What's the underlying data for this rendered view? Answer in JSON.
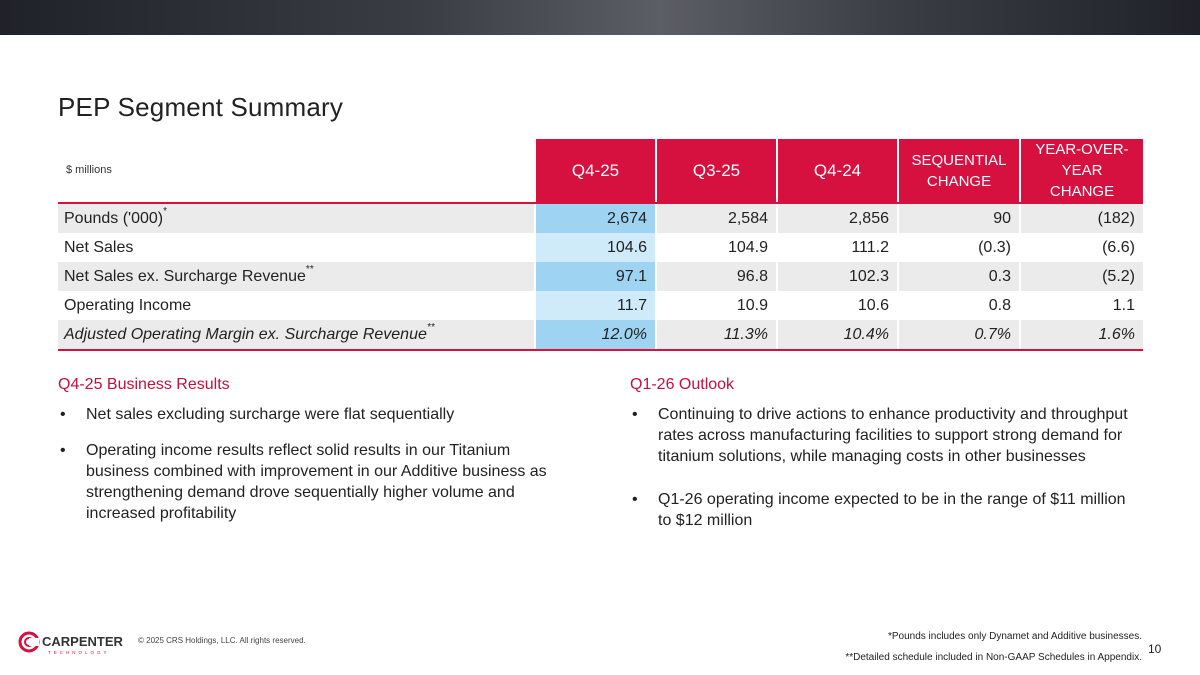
{
  "slide": {
    "title": "PEP Segment Summary",
    "page_number": "10",
    "copyright": "© 2025 CRS Holdings, LLC. All rights reserved.",
    "logo_text": "CARPENTER",
    "logo_subtext": "TECHNOLOGY"
  },
  "table": {
    "units": "$ millions",
    "headers": [
      "Q4-25",
      "Q3-25",
      "Q4-24",
      "SEQUENTIAL CHANGE",
      "YEAR-OVER-YEAR CHANGE"
    ],
    "rows": [
      {
        "label": "Pounds ('000)",
        "mark": "*",
        "values": [
          "2,674",
          "2,584",
          "2,856",
          "90",
          "(182)"
        ]
      },
      {
        "label": "Net Sales",
        "mark": "",
        "values": [
          "104.6",
          "104.9",
          "111.2",
          "(0.3)",
          "(6.6)"
        ]
      },
      {
        "label": "Net Sales ex. Surcharge Revenue",
        "mark": "**",
        "values": [
          "97.1",
          "96.8",
          "102.3",
          "0.3",
          "(5.2)"
        ]
      },
      {
        "label": "Operating Income",
        "mark": "",
        "values": [
          "11.7",
          "10.9",
          "10.6",
          "0.8",
          "1.1"
        ]
      },
      {
        "label": "Adjusted Operating Margin ex. Surcharge Revenue",
        "mark": "**",
        "values": [
          "12.0%",
          "11.3%",
          "10.4%",
          "0.7%",
          "1.6%"
        ]
      }
    ]
  },
  "business_results": {
    "heading": "Q4-25 Business Results",
    "bullets": [
      "Net sales excluding surcharge were flat sequentially",
      "Operating income results reflect solid results in our Titanium business combined with improvement in our Additive business as strengthening demand drove sequentially higher volume and increased profitability"
    ]
  },
  "outlook": {
    "heading": "Q1-26 Outlook",
    "bullets": [
      "Continuing to drive actions to enhance productivity and throughput rates across manufacturing facilities to support strong demand for titanium solutions, while managing costs in other businesses",
      "Q1-26 operating income expected to be in the range of $11 million to $12 million"
    ]
  },
  "footnotes": [
    "*Pounds includes only Dynamet and Additive businesses.",
    "**Detailed schedule included in Non-GAAP Schedules in Appendix."
  ],
  "colors": {
    "accent": "#d6103f",
    "highlight_dark": "#9ed3f1",
    "highlight_light": "#cfeaf8"
  }
}
